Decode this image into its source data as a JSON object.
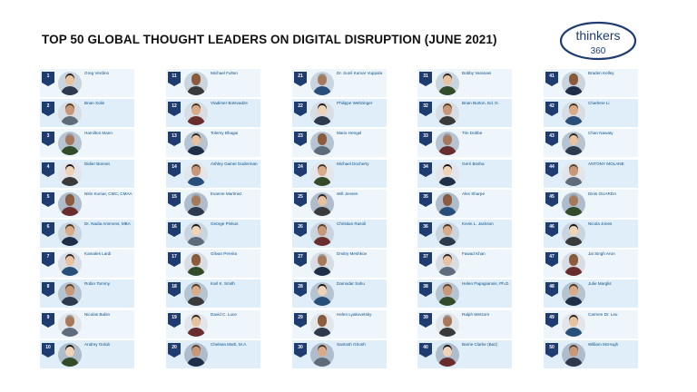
{
  "title": "TOP 50 GLOBAL THOUGHT LEADERS ON DIGITAL DISRUPTION (JUNE 2021)",
  "logo": {
    "word": "thinkers",
    "number": "360",
    "color": "#1f3c70"
  },
  "leaders": [
    {
      "rank": "1",
      "name": "Greg Verdino"
    },
    {
      "rank": "2",
      "name": "Brian Solis"
    },
    {
      "rank": "3",
      "name": "Hamilton Mann"
    },
    {
      "rank": "4",
      "name": "Didier Bonnet"
    },
    {
      "rank": "5",
      "name": "Nitin Kumar, CMC, CMAA"
    },
    {
      "rank": "6",
      "name": "Dr. Nadia Ammons, MBA"
    },
    {
      "rank": "7",
      "name": "Kamales Lardi"
    },
    {
      "rank": "8",
      "name": "Robin Tommy"
    },
    {
      "rank": "9",
      "name": "Nicolas Babin"
    },
    {
      "rank": "10",
      "name": "Andrey Golub"
    },
    {
      "rank": "11",
      "name": "Michael Fulton"
    },
    {
      "rank": "12",
      "name": "Vladimer Botsvadze"
    },
    {
      "rank": "13",
      "name": "Tolemy Bhagai"
    },
    {
      "rank": "14",
      "name": "Ashley Gainer Duderman"
    },
    {
      "rank": "15",
      "name": "Evanne Martinez"
    },
    {
      "rank": "16",
      "name": "George Pinkus"
    },
    {
      "rank": "17",
      "name": "Gilvan Pereira"
    },
    {
      "rank": "18",
      "name": "Karl K. Smith"
    },
    {
      "rank": "19",
      "name": "David C. Luce"
    },
    {
      "rank": "20",
      "name": "Chelsea Marti, M.A."
    },
    {
      "rank": "21",
      "name": "Dr. Sunil Kumar Vuppala"
    },
    {
      "rank": "22",
      "name": "Philippe Weltzinger"
    },
    {
      "rank": "23",
      "name": "Mario Hengel"
    },
    {
      "rank": "24",
      "name": "Michael Docherty"
    },
    {
      "rank": "25",
      "name": "Will Jensen"
    },
    {
      "rank": "26",
      "name": "Christian Rasoli"
    },
    {
      "rank": "27",
      "name": "Dmitry Meshkov"
    },
    {
      "rank": "28",
      "name": "Damodar Sahu"
    },
    {
      "rank": "29",
      "name": "Helen Lyakovetsky"
    },
    {
      "rank": "30",
      "name": "Santosh Ghosh"
    },
    {
      "rank": "31",
      "name": "Bobby Varanasi"
    },
    {
      "rank": "32",
      "name": "Brian Burton, Ed. D."
    },
    {
      "rank": "33",
      "name": "Tim Dobbe"
    },
    {
      "rank": "34",
      "name": "Gerri Bosha"
    },
    {
      "rank": "35",
      "name": "Alex Sharpe"
    },
    {
      "rank": "36",
      "name": "Kevin L. Jackson"
    },
    {
      "rank": "37",
      "name": "Fawad Khan"
    },
    {
      "rank": "38",
      "name": "Helen Papagiannis, Ph.D."
    },
    {
      "rank": "39",
      "name": "Ralph Wetzorn"
    },
    {
      "rank": "40",
      "name": "Barrie Clarke (Baz)"
    },
    {
      "rank": "41",
      "name": "Braden Kelley"
    },
    {
      "rank": "42",
      "name": "Charlene Li"
    },
    {
      "rank": "43",
      "name": "Chan Nawaty"
    },
    {
      "rank": "44",
      "name": "ANTONY MOLANE"
    },
    {
      "rank": "45",
      "name": "Dinis GUARDA"
    },
    {
      "rank": "46",
      "name": "Nicola Jones"
    },
    {
      "rank": "47",
      "name": "Jai Singh Arun"
    },
    {
      "rank": "48",
      "name": "Julie Marglis"
    },
    {
      "rank": "49",
      "name": "Carmen Dr. Leu"
    },
    {
      "rank": "50",
      "name": "William McHugh"
    }
  ]
}
